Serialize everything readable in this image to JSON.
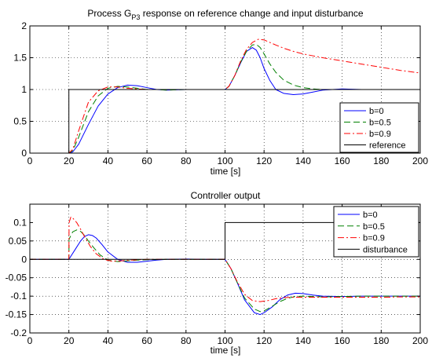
{
  "chart_data": [
    {
      "type": "line",
      "title": {
        "main": "Process G",
        "sub": "P3",
        "rest": " response on reference change and input disturbance"
      },
      "xlabel": "time [s]",
      "ylabel": "",
      "xlim": [
        0,
        200
      ],
      "ylim": [
        0,
        2
      ],
      "xticks": [
        0,
        20,
        40,
        60,
        80,
        100,
        120,
        140,
        160,
        180,
        200
      ],
      "yticks": [
        0,
        0.5,
        1,
        1.5,
        2
      ],
      "yticklabels": [
        "0",
        "0.5",
        "1",
        "1.5",
        "2"
      ],
      "grid": true,
      "legend_position": "bottom-right",
      "series": [
        {
          "name": "b=0",
          "color": "#0000ff",
          "dash": "solid",
          "x": [
            0,
            20,
            22,
            25,
            30,
            35,
            40,
            45,
            50,
            55,
            60,
            65,
            70,
            80,
            90,
            100,
            102,
            105,
            108,
            111,
            114,
            116,
            118,
            120,
            123,
            126,
            130,
            135,
            140,
            145,
            150,
            155,
            160,
            170,
            180,
            190,
            200
          ],
          "y": [
            0,
            0,
            0.02,
            0.14,
            0.45,
            0.74,
            0.93,
            1.03,
            1.07,
            1.06,
            1.03,
            1.0,
            0.99,
            1.0,
            1.0,
            1.0,
            1.05,
            1.22,
            1.42,
            1.6,
            1.66,
            1.62,
            1.5,
            1.33,
            1.14,
            1.0,
            0.94,
            0.92,
            0.93,
            0.96,
            0.99,
            1.0,
            1.01,
            1.0,
            1.0,
            1.0,
            1.0
          ]
        },
        {
          "name": "b=0.5",
          "color": "#008000",
          "dash": "8 4",
          "x": [
            0,
            20,
            22,
            25,
            30,
            35,
            40,
            45,
            50,
            55,
            60,
            65,
            70,
            80,
            90,
            100,
            102,
            105,
            108,
            111,
            114,
            116,
            118,
            120,
            123,
            126,
            130,
            135,
            140,
            145,
            150,
            155,
            160,
            170,
            180,
            190,
            200
          ],
          "y": [
            0,
            0,
            0.04,
            0.25,
            0.65,
            0.9,
            1.02,
            1.05,
            1.04,
            1.02,
            1.0,
            1.0,
            0.99,
            1.0,
            1.0,
            1.0,
            1.05,
            1.22,
            1.43,
            1.6,
            1.7,
            1.71,
            1.66,
            1.56,
            1.4,
            1.27,
            1.15,
            1.07,
            1.03,
            1.01,
            1.0,
            1.0,
            1.0,
            1.0,
            1.0,
            1.0,
            1.0
          ]
        },
        {
          "name": "b=0.9",
          "color": "#ff0000",
          "dash": "8 3 2 3",
          "x": [
            0,
            20,
            22,
            25,
            30,
            35,
            40,
            45,
            50,
            55,
            60,
            65,
            70,
            80,
            90,
            100,
            102,
            105,
            108,
            111,
            114,
            117,
            120,
            123,
            126,
            130,
            135,
            140,
            145,
            150,
            160,
            170,
            180,
            190,
            200
          ],
          "y": [
            0,
            0,
            0.06,
            0.35,
            0.8,
            0.98,
            1.04,
            1.04,
            1.02,
            1.01,
            1.0,
            1.0,
            1.0,
            1.0,
            1.0,
            1.0,
            1.05,
            1.22,
            1.45,
            1.63,
            1.74,
            1.79,
            1.78,
            1.74,
            1.7,
            1.65,
            1.6,
            1.56,
            1.53,
            1.5,
            1.45,
            1.4,
            1.35,
            1.3,
            1.26
          ]
        },
        {
          "name": "reference",
          "color": "#000000",
          "dash": "solid",
          "x": [
            0,
            20,
            20,
            200
          ],
          "y": [
            0,
            0,
            1,
            1
          ]
        }
      ]
    },
    {
      "type": "line",
      "title": {
        "main": "Controller output",
        "sub": "",
        "rest": ""
      },
      "xlabel": "time [s]",
      "ylabel": "",
      "xlim": [
        0,
        200
      ],
      "ylim": [
        -0.2,
        0.15
      ],
      "xticks": [
        0,
        20,
        40,
        60,
        80,
        100,
        120,
        140,
        160,
        180,
        200
      ],
      "yticks": [
        -0.2,
        -0.15,
        -0.1,
        -0.05,
        0,
        0.05,
        0.1
      ],
      "yticklabels": [
        "-0.2",
        "-0.15",
        "-0.1",
        "-0.05",
        "0",
        "0.05",
        "0.1"
      ],
      "grid": true,
      "legend_position": "top-right",
      "series": [
        {
          "name": "b=0",
          "color": "#0000ff",
          "dash": "solid",
          "x": [
            0,
            20,
            23,
            26,
            28,
            30,
            32,
            34,
            37,
            40,
            45,
            50,
            55,
            60,
            65,
            70,
            80,
            90,
            100,
            103,
            106,
            110,
            115,
            118,
            120,
            124,
            128,
            132,
            136,
            140,
            145,
            150,
            160,
            170,
            180,
            190,
            200
          ],
          "y": [
            0,
            0,
            0.025,
            0.05,
            0.062,
            0.067,
            0.065,
            0.058,
            0.04,
            0.02,
            0.0,
            -0.008,
            -0.008,
            -0.005,
            -0.002,
            0.0,
            0.001,
            0.0,
            0.0,
            -0.025,
            -0.06,
            -0.11,
            -0.145,
            -0.15,
            -0.145,
            -0.13,
            -0.11,
            -0.097,
            -0.092,
            -0.093,
            -0.097,
            -0.1,
            -0.101,
            -0.1,
            -0.1,
            -0.1,
            -0.1
          ]
        },
        {
          "name": "b=0.5",
          "color": "#008000",
          "dash": "8 4",
          "x": [
            0,
            20,
            20.1,
            22,
            24,
            26,
            28,
            30,
            33,
            36,
            40,
            45,
            50,
            55,
            60,
            70,
            80,
            90,
            100,
            103,
            106,
            110,
            115,
            118,
            120,
            124,
            128,
            132,
            136,
            140,
            145,
            150,
            160,
            170,
            180,
            190,
            200
          ],
          "y": [
            0,
            0,
            0.055,
            0.075,
            0.08,
            0.076,
            0.065,
            0.05,
            0.03,
            0.012,
            -0.002,
            -0.006,
            -0.004,
            -0.002,
            -0.001,
            0.0,
            0.0,
            0.0,
            0.0,
            -0.025,
            -0.06,
            -0.105,
            -0.135,
            -0.142,
            -0.14,
            -0.128,
            -0.115,
            -0.106,
            -0.101,
            -0.1,
            -0.101,
            -0.102,
            -0.101,
            -0.1,
            -0.1,
            -0.1,
            -0.1
          ]
        },
        {
          "name": "b=0.9",
          "color": "#ff0000",
          "dash": "8 3 2 3",
          "x": [
            0,
            20,
            20.1,
            21,
            22,
            24,
            26,
            28,
            31,
            34,
            38,
            42,
            47,
            52,
            60,
            70,
            80,
            90,
            100,
            103,
            106,
            110,
            114,
            118,
            122,
            126,
            130,
            135,
            140,
            145,
            150,
            160,
            170,
            180,
            190,
            200
          ],
          "y": [
            0,
            0,
            0.1,
            0.115,
            0.112,
            0.1,
            0.082,
            0.062,
            0.035,
            0.015,
            0.0,
            -0.005,
            -0.004,
            -0.002,
            0.0,
            0.0,
            0.0,
            0.0,
            0.0,
            -0.025,
            -0.058,
            -0.095,
            -0.112,
            -0.115,
            -0.112,
            -0.107,
            -0.104,
            -0.103,
            -0.103,
            -0.103,
            -0.103,
            -0.103,
            -0.103,
            -0.103,
            -0.102,
            -0.102
          ]
        },
        {
          "name": "disturbance",
          "color": "#000000",
          "dash": "solid",
          "x": [
            0,
            100,
            100,
            200
          ],
          "y": [
            0,
            0,
            0.1,
            0.1
          ]
        }
      ]
    }
  ]
}
